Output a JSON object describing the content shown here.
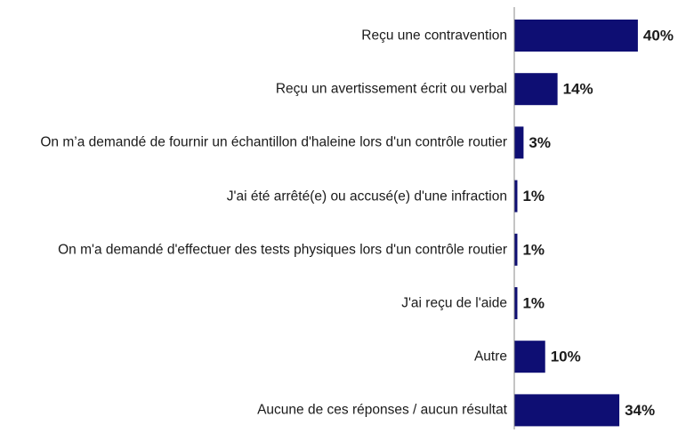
{
  "chart_data": {
    "type": "bar",
    "orientation": "horizontal",
    "categories": [
      "Reçu une contravention",
      "Reçu un avertissement écrit ou verbal",
      "On m’a demandé de fournir un échantillon d'haleine lors d'un contrôle routier",
      "J'ai été arrêté(e) ou accusé(e) d'une infraction",
      "On m'a demandé d'effectuer des tests physiques lors d'un contrôle routier",
      "J'ai reçu de l'aide",
      "Autre",
      "Aucune de ces réponses / aucun résultat"
    ],
    "values": [
      40,
      14,
      3,
      1,
      1,
      1,
      10,
      34
    ],
    "value_labels": [
      "40%",
      "14%",
      "3%",
      "1%",
      "1%",
      "1%",
      "10%",
      "34%"
    ],
    "color": "#0e0e73",
    "xlim": [
      0,
      55
    ]
  }
}
